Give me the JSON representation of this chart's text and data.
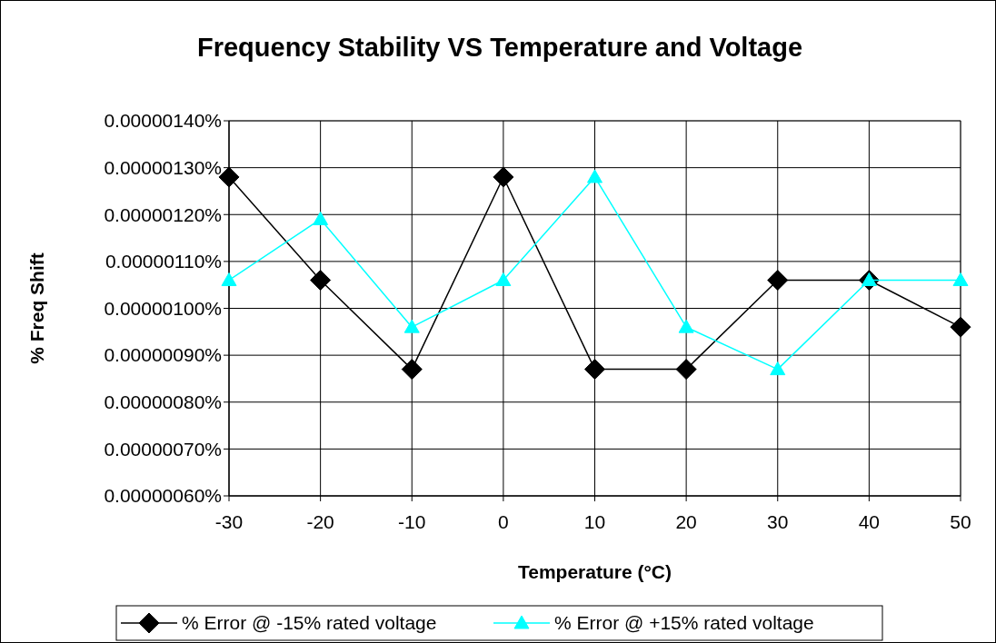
{
  "chart_data": {
    "type": "line",
    "title": "Frequency Stability VS Temperature and Voltage",
    "xlabel": "Temperature (°C)",
    "ylabel": "% Freq Shift",
    "x": [
      -30,
      -20,
      -10,
      0,
      10,
      20,
      30,
      40,
      50
    ],
    "xlim": [
      -30,
      50
    ],
    "xticks": [
      -30,
      -20,
      -10,
      0,
      10,
      20,
      30,
      40,
      50
    ],
    "ylim": [
      6e-07,
      1.4e-06
    ],
    "yticks": [
      {
        "value": 6e-07,
        "label": "0.00000060%"
      },
      {
        "value": 7e-07,
        "label": "0.00000070%"
      },
      {
        "value": 8e-07,
        "label": "0.00000080%"
      },
      {
        "value": 9e-07,
        "label": "0.00000090%"
      },
      {
        "value": 1e-06,
        "label": "0.00000100%"
      },
      {
        "value": 1.1e-06,
        "label": "0.00000110%"
      },
      {
        "value": 1.2e-06,
        "label": "0.00000120%"
      },
      {
        "value": 1.3e-06,
        "label": "0.00000130%"
      },
      {
        "value": 1.4e-06,
        "label": "0.00000140%"
      }
    ],
    "grid": true,
    "legend": "bottom",
    "series": [
      {
        "name": "% Error @ -15% rated voltage",
        "color": "#000000",
        "marker": "diamond",
        "values": [
          1.28e-06,
          1.06e-06,
          8.7e-07,
          1.28e-06,
          8.7e-07,
          8.7e-07,
          1.06e-06,
          1.06e-06,
          9.6e-07
        ]
      },
      {
        "name": "% Error @ +15% rated voltage",
        "color": "#00ffff",
        "marker": "triangle",
        "values": [
          1.06e-06,
          1.19e-06,
          9.6e-07,
          1.06e-06,
          1.28e-06,
          9.6e-07,
          8.7e-07,
          1.06e-06,
          1.06e-06
        ]
      }
    ]
  }
}
